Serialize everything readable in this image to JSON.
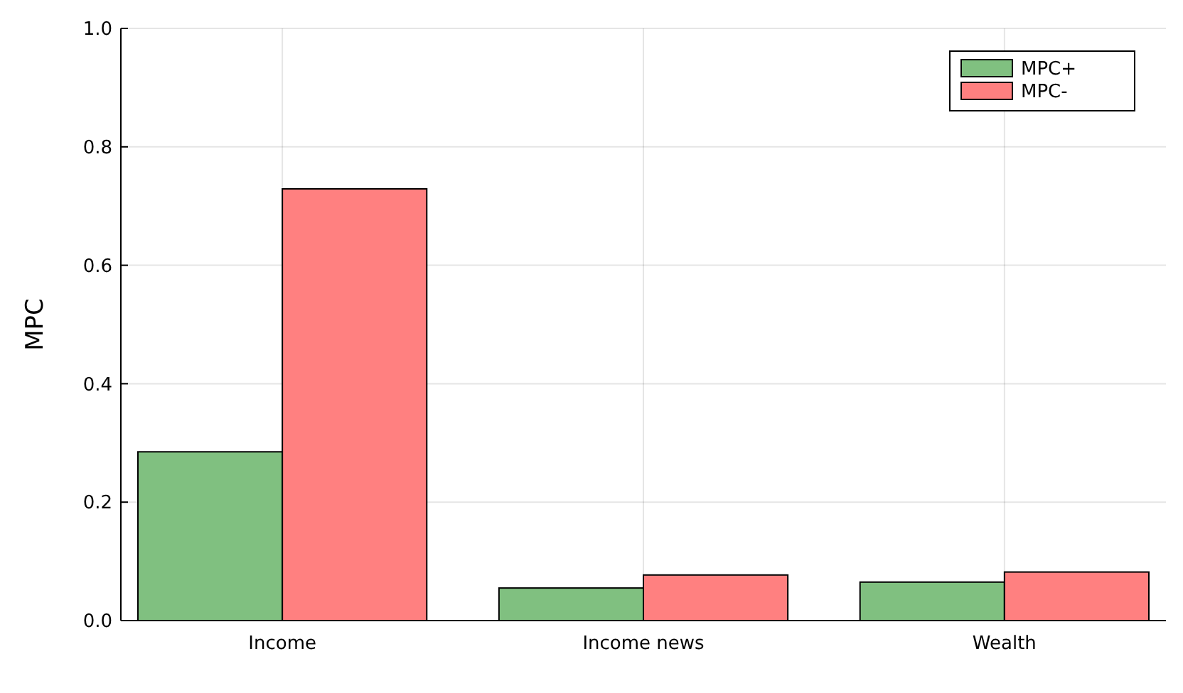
{
  "chart_data": {
    "type": "bar",
    "ylabel": "MPC",
    "categories": [
      "Income",
      "Income news",
      "Wealth"
    ],
    "series": [
      {
        "name": "MPC+",
        "color": "#80c080",
        "values": [
          0.285,
          0.055,
          0.065
        ]
      },
      {
        "name": "MPC-",
        "color": "#ff8080",
        "values": [
          0.729,
          0.077,
          0.082
        ]
      }
    ],
    "ylim": [
      0,
      1
    ],
    "yticks": [
      {
        "value": 0,
        "label": "0.0"
      },
      {
        "value": 0.2,
        "label": "0.2"
      },
      {
        "value": 0.4,
        "label": "0.4"
      },
      {
        "value": 0.6,
        "label": "0.6"
      },
      {
        "value": 0.8,
        "label": "0.8"
      },
      {
        "value": 1,
        "label": "1.0"
      }
    ],
    "grid": true,
    "legend": "top right"
  }
}
